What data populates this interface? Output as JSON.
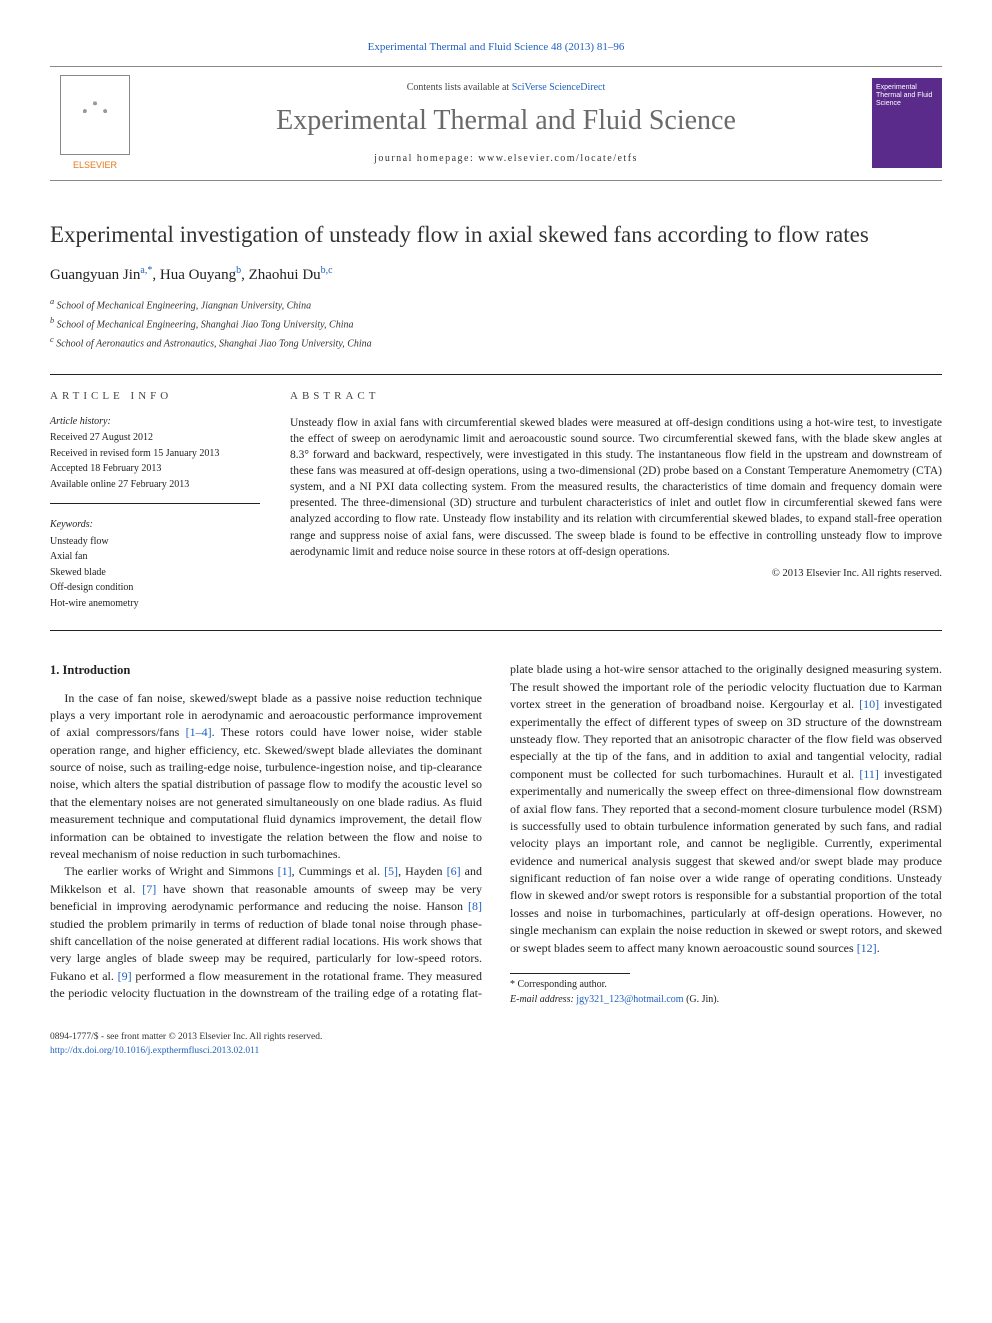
{
  "journal_ref": {
    "text": "Experimental Thermal and Fluid Science 48 (2013) 81–96",
    "href": "#"
  },
  "header": {
    "elsevier": "ELSEVIER",
    "contents_prefix": "Contents lists available at ",
    "contents_link": "SciVerse ScienceDirect",
    "journal_title": "Experimental Thermal and Fluid Science",
    "homepage_label": "journal homepage: www.elsevier.com/locate/etfs",
    "cover_text": "Experimental Thermal and Fluid Science"
  },
  "article": {
    "title": "Experimental investigation of unsteady flow in axial skewed fans according to flow rates",
    "authors": [
      {
        "name": "Guangyuan Jin",
        "sup": "a,*"
      },
      {
        "name": "Hua Ouyang",
        "sup": "b"
      },
      {
        "name": "Zhaohui Du",
        "sup": "b,c"
      }
    ],
    "author_sep": ", ",
    "affiliations": [
      {
        "sup": "a",
        "text": "School of Mechanical Engineering, Jiangnan University, China"
      },
      {
        "sup": "b",
        "text": "School of Mechanical Engineering, Shanghai Jiao Tong University, China"
      },
      {
        "sup": "c",
        "text": "School of Aeronautics and Astronautics, Shanghai Jiao Tong University, China"
      }
    ]
  },
  "info": {
    "heading": "article info",
    "history_label": "Article history:",
    "history": [
      "Received 27 August 2012",
      "Received in revised form 15 January 2013",
      "Accepted 18 February 2013",
      "Available online 27 February 2013"
    ],
    "keywords_label": "Keywords:",
    "keywords": [
      "Unsteady flow",
      "Axial fan",
      "Skewed blade",
      "Off-design condition",
      "Hot-wire anemometry"
    ]
  },
  "abstract": {
    "heading": "abstract",
    "text": "Unsteady flow in axial fans with circumferential skewed blades were measured at off-design conditions using a hot-wire test, to investigate the effect of sweep on aerodynamic limit and aeroacoustic sound source. Two circumferential skewed fans, with the blade skew angles at 8.3° forward and backward, respectively, were investigated in this study. The instantaneous flow field in the upstream and downstream of these fans was measured at off-design operations, using a two-dimensional (2D) probe based on a Constant Temperature Anemometry (CTA) system, and a NI PXI data collecting system. From the measured results, the characteristics of time domain and frequency domain were presented. The three-dimensional (3D) structure and turbulent characteristics of inlet and outlet flow in circumferential skewed fans were analyzed according to flow rate. Unsteady flow instability and its relation with circumferential skewed blades, to expand stall-free operation range and suppress noise of axial fans, were discussed. The sweep blade is found to be effective in controlling unsteady flow to improve aerodynamic limit and reduce noise source in these rotors at off-design operations.",
    "copyright": "© 2013 Elsevier Inc. All rights reserved."
  },
  "body": {
    "section_heading": "1. Introduction",
    "p1a": "In the case of fan noise, skewed/swept blade as a passive noise reduction technique plays a very important role in aerodynamic and aeroacoustic performance improvement of axial compressors/fans ",
    "p1_ref1": "[1–4]",
    "p1b": ". These rotors could have lower noise, wider stable operation range, and higher efficiency, etc. Skewed/swept blade alleviates the dominant source of noise, such as trailing-edge noise, turbulence-ingestion noise, and tip-clearance noise, which alters the spatial distribution of passage flow to modify the acoustic level so that the elementary noises are not generated simultaneously on one blade radius. As fluid measurement technique and computational fluid dynamics improvement, the detail flow information can be obtained to investigate the relation between the flow and noise to reveal mechanism of noise reduction in such turbomachines.",
    "p2a": "The earlier works of Wright and Simmons ",
    "p2_ref1": "[1]",
    "p2b": ", Cummings et al. ",
    "p2_ref5": "[5]",
    "p2c": ", Hayden ",
    "p2_ref6": "[6]",
    "p2d": " and Mikkelson et al. ",
    "p2_ref7": "[7]",
    "p2e": " have shown that reasonable amounts of sweep may be very beneficial in improving aerodynamic performance and reducing the noise. Hanson ",
    "p2_ref8": "[8]",
    "p2f": " studied the problem primarily in terms of reduction of blade tonal noise through phase-shift cancellation of the noise generated at different radial locations. His work shows that very large angles of blade sweep may be required, particularly for low-speed rotors. Fukano et al. ",
    "p2_ref9": "[9]",
    "p2g": " performed a flow measurement in the rotational frame. They measured the periodic velocity fluctuation in the downstream of the trailing edge of a rotating flat-plate blade using a hot-wire sensor attached to the originally designed measuring system. The result showed the important role of the periodic velocity fluctuation due to Karman vortex street in the generation of broadband noise. Kergourlay et al. ",
    "p2_ref10": "[10]",
    "p2h": " investigated experimentally the effect of different types of sweep on 3D structure of the downstream unsteady flow. They reported that an anisotropic character of the flow field was observed especially at the tip of the fans, and in addition to axial and tangential velocity, radial component must be collected for such turbomachines. Hurault et al. ",
    "p2_ref11": "[11]",
    "p2i": " investigated experimentally and numerically the sweep effect on three-dimensional flow downstream of axial flow fans. They reported that a second-moment closure turbulence model (RSM) is successfully used to obtain turbulence information generated by such fans, and radial velocity plays an important role, and cannot be negligible. Currently, experimental evidence and numerical analysis suggest that skewed and/or swept blade may produce significant reduction of fan noise over a wide range of operating conditions. Unsteady flow in skewed and/or swept rotors is responsible for a substantial proportion of the total losses and noise in turbomachines, particularly at off-design operations. However, no single mechanism can explain the noise reduction in skewed or swept rotors, and skewed or swept blades seem to affect many known aeroacoustic sound sources ",
    "p2_ref12": "[12]",
    "p2j": "."
  },
  "footnote": {
    "corr_label": "* Corresponding author.",
    "email_label": "E-mail address: ",
    "email": "jgy321_123@hotmail.com",
    "email_who": " (G. Jin)."
  },
  "footer": {
    "left1": "0894-1777/$ - see front matter © 2013 Elsevier Inc. All rights reserved.",
    "doi": "http://dx.doi.org/10.1016/j.expthermflusci.2013.02.011"
  }
}
